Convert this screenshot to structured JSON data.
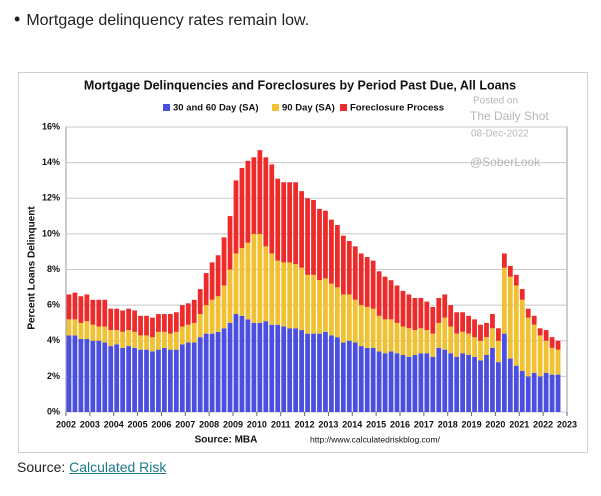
{
  "bullet": "Mortgage delinquency rates remain low.",
  "source_label": "Source: ",
  "source_link": "Calculated Risk",
  "chart_data": {
    "type": "stacked-bar",
    "title": "Mortgage Delinquencies and Foreclosures by Period Past Due, All Loans",
    "ylabel": "Percent Loans Delinquent",
    "source": "Source: MBA",
    "url": "http://www.calculatedriskblog.com/",
    "watermark": [
      "Posted on",
      "The Daily Shot",
      "08-Dec-2022",
      "@SoberLook"
    ],
    "xlim": [
      2002,
      2023
    ],
    "xticks": [
      2002,
      2003,
      2004,
      2005,
      2006,
      2007,
      2008,
      2009,
      2010,
      2011,
      2012,
      2013,
      2014,
      2015,
      2016,
      2017,
      2018,
      2019,
      2020,
      2021,
      2022,
      2023
    ],
    "ylim": [
      0,
      16
    ],
    "yticks": [
      {
        "value": 0,
        "label": "0%"
      },
      {
        "value": 2,
        "label": "2%"
      },
      {
        "value": 4,
        "label": "4%"
      },
      {
        "value": 6,
        "label": "6%"
      },
      {
        "value": 8,
        "label": "8%"
      },
      {
        "value": 10,
        "label": "10%"
      },
      {
        "value": 12,
        "label": "12%"
      },
      {
        "value": 14,
        "label": "14%"
      },
      {
        "value": 16,
        "label": "16%"
      }
    ],
    "grid": true,
    "x": [
      2002,
      2002.25,
      2002.5,
      2002.75,
      2003,
      2003.25,
      2003.5,
      2003.75,
      2004,
      2004.25,
      2004.5,
      2004.75,
      2005,
      2005.25,
      2005.5,
      2005.75,
      2006,
      2006.25,
      2006.5,
      2006.75,
      2007,
      2007.25,
      2007.5,
      2007.75,
      2008,
      2008.25,
      2008.5,
      2008.75,
      2009,
      2009.25,
      2009.5,
      2009.75,
      2010,
      2010.25,
      2010.5,
      2010.75,
      2011,
      2011.25,
      2011.5,
      2011.75,
      2012,
      2012.25,
      2012.5,
      2012.75,
      2013,
      2013.25,
      2013.5,
      2013.75,
      2014,
      2014.25,
      2014.5,
      2014.75,
      2015,
      2015.25,
      2015.5,
      2015.75,
      2016,
      2016.25,
      2016.5,
      2016.75,
      2017,
      2017.25,
      2017.5,
      2017.75,
      2018,
      2018.25,
      2018.5,
      2018.75,
      2019,
      2019.25,
      2019.5,
      2019.75,
      2020,
      2020.25,
      2020.5,
      2020.75,
      2021,
      2021.25,
      2021.5,
      2021.75,
      2022,
      2022.25,
      2022.5
    ],
    "series": [
      {
        "name": "30 and 60 Day (SA)",
        "color": "#4b4fe0",
        "values": [
          4.3,
          4.3,
          4.1,
          4.1,
          4.0,
          4.0,
          3.9,
          3.7,
          3.8,
          3.6,
          3.7,
          3.6,
          3.5,
          3.5,
          3.4,
          3.5,
          3.6,
          3.5,
          3.5,
          3.8,
          3.9,
          3.9,
          4.2,
          4.4,
          4.4,
          4.5,
          4.7,
          5.0,
          5.5,
          5.4,
          5.2,
          5.0,
          5.0,
          5.1,
          4.9,
          4.9,
          4.8,
          4.7,
          4.7,
          4.6,
          4.4,
          4.4,
          4.4,
          4.5,
          4.3,
          4.2,
          3.9,
          4.0,
          3.9,
          3.7,
          3.6,
          3.6,
          3.4,
          3.3,
          3.4,
          3.3,
          3.2,
          3.1,
          3.2,
          3.3,
          3.3,
          3.1,
          3.6,
          3.5,
          3.3,
          3.1,
          3.3,
          3.2,
          3.1,
          2.9,
          3.2,
          3.6,
          2.8,
          4.4,
          3.0,
          2.6,
          2.3,
          2.0,
          2.2,
          2.0,
          2.2,
          2.1,
          2.1
        ]
      },
      {
        "name": "90 Day (SA)",
        "color": "#f0c233",
        "values": [
          0.9,
          0.9,
          0.9,
          1.0,
          0.9,
          0.8,
          0.9,
          0.9,
          0.8,
          0.9,
          0.9,
          0.9,
          0.8,
          0.8,
          0.8,
          1.0,
          0.9,
          0.9,
          1.0,
          1.0,
          1.0,
          1.1,
          1.3,
          1.6,
          1.9,
          2.0,
          2.4,
          3.0,
          3.4,
          3.8,
          4.3,
          5.0,
          5.0,
          4.2,
          4.0,
          3.6,
          3.6,
          3.7,
          3.6,
          3.5,
          3.3,
          3.3,
          3.0,
          3.0,
          2.9,
          2.8,
          2.7,
          2.6,
          2.4,
          2.3,
          2.3,
          2.2,
          2.0,
          1.9,
          1.8,
          1.7,
          1.6,
          1.6,
          1.4,
          1.4,
          1.3,
          1.3,
          1.4,
          1.8,
          1.5,
          1.3,
          1.2,
          1.2,
          1.1,
          1.1,
          1.0,
          1.1,
          1.2,
          3.7,
          4.6,
          4.5,
          4.0,
          3.3,
          2.7,
          2.3,
          1.8,
          1.5,
          1.4
        ]
      },
      {
        "name": "Foreclosure Process",
        "color": "#ee2b2b",
        "values": [
          1.4,
          1.5,
          1.5,
          1.5,
          1.4,
          1.5,
          1.5,
          1.2,
          1.2,
          1.2,
          1.2,
          1.2,
          1.1,
          1.1,
          1.1,
          1.0,
          1.0,
          1.1,
          1.1,
          1.2,
          1.2,
          1.3,
          1.4,
          1.8,
          2.1,
          2.3,
          2.7,
          3.0,
          4.1,
          4.5,
          4.6,
          4.3,
          4.7,
          5.0,
          5.0,
          4.6,
          4.5,
          4.5,
          4.6,
          4.3,
          4.3,
          4.2,
          4.0,
          3.8,
          3.6,
          3.5,
          3.3,
          3.0,
          3.0,
          2.9,
          2.8,
          2.7,
          2.5,
          2.4,
          2.2,
          2.1,
          2.0,
          1.9,
          1.8,
          1.7,
          1.6,
          1.5,
          1.4,
          1.3,
          1.2,
          1.2,
          1.1,
          1.0,
          1.0,
          0.9,
          0.8,
          0.8,
          0.7,
          0.8,
          0.6,
          0.6,
          0.6,
          0.5,
          0.5,
          0.4,
          0.6,
          0.6,
          0.5
        ]
      }
    ]
  }
}
